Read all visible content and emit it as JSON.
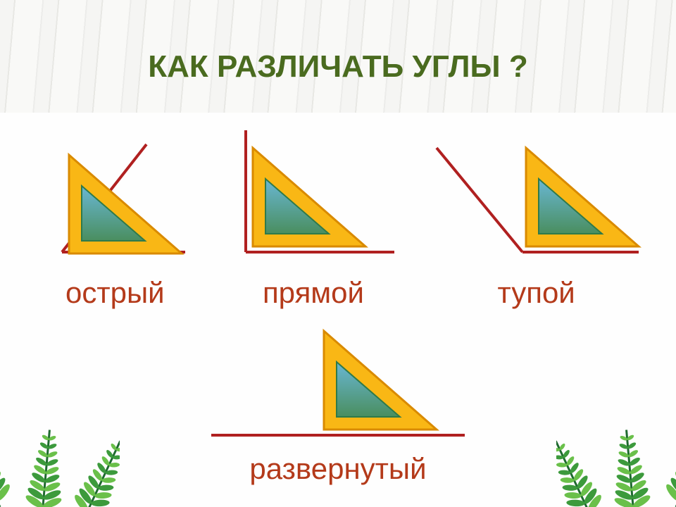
{
  "title": {
    "text": "КАК  РАЗЛИЧАТЬ  УГЛЫ ?",
    "color": "#4a6b1f",
    "fontsize": 44
  },
  "label_color": "#b43a1a",
  "angle_stroke": "#b02020",
  "angle_stroke_width": 4,
  "triangle": {
    "outer_fill": "#f9b715",
    "outer_stroke": "#d98a00",
    "inner_fill_top": "#69b7d4",
    "inner_fill_bottom": "#4a8e5f",
    "inner_stroke": "#2f7a4a"
  },
  "angles": [
    {
      "id": "acute",
      "label": "острый",
      "row": 1
    },
    {
      "id": "right",
      "label": "прямой",
      "row": 1
    },
    {
      "id": "obtuse",
      "label": "тупой",
      "row": 1
    },
    {
      "id": "straight",
      "label": "развернутый",
      "row": 2
    }
  ],
  "leaf_colors": {
    "dark": "#1f6b2f",
    "mid": "#3c9a3c",
    "light": "#6ac04a"
  },
  "background": "#fefefe"
}
